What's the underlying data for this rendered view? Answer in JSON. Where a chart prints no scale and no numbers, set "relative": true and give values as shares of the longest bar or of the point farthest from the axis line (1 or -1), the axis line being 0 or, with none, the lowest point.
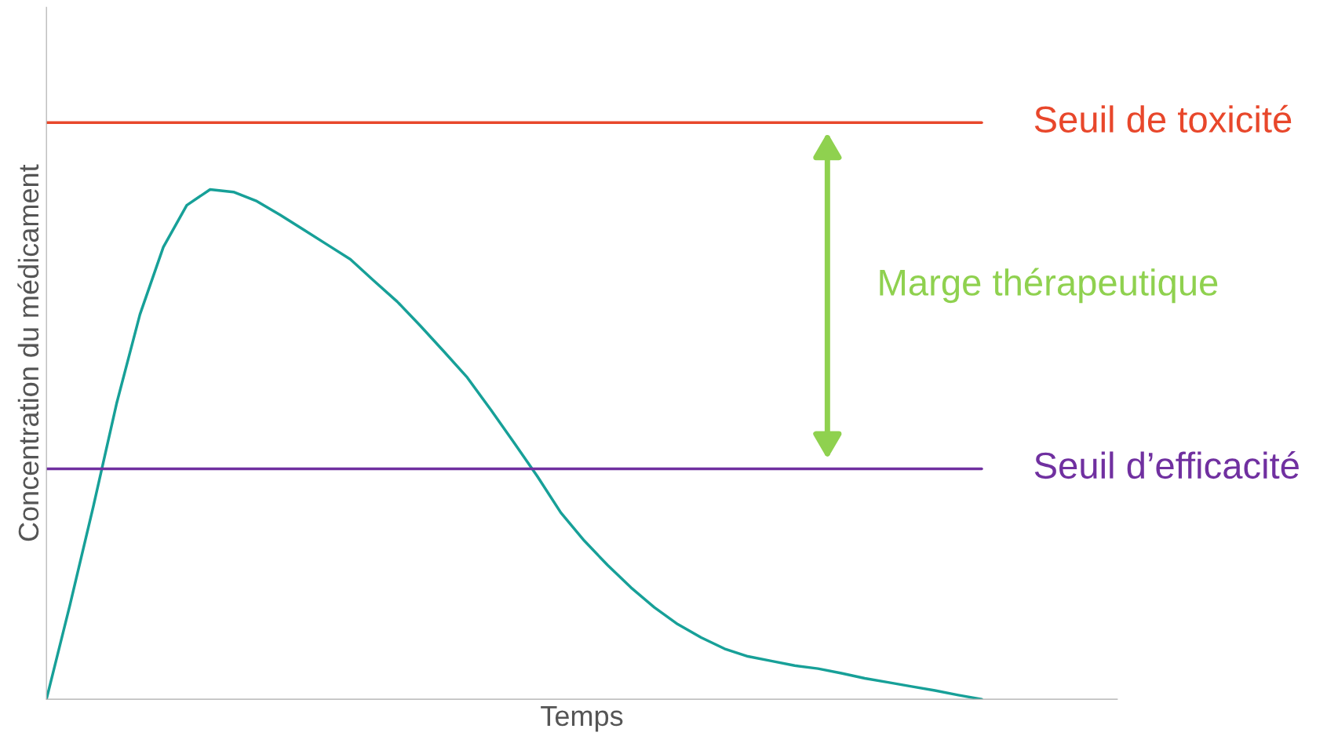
{
  "chart_data": {
    "type": "line",
    "relative": true,
    "xlabel": "Temps",
    "ylabel": "Concentration du médicament",
    "categories": [
      null,
      null,
      null,
      null,
      null,
      null,
      null,
      null,
      null,
      null,
      null,
      null,
      null,
      null,
      null,
      null,
      null,
      null,
      null,
      null,
      null,
      null,
      null,
      null,
      null,
      null,
      null,
      null,
      null,
      null,
      null,
      null,
      null,
      null,
      null,
      null,
      null,
      null,
      null,
      null,
      null
    ],
    "series": [
      {
        "color": "#17a098",
        "values": [
          0,
          0.184,
          0.377,
          0.58,
          0.755,
          0.887,
          0.969,
          1,
          0.995,
          0.977,
          0.95,
          0.921,
          0.892,
          0.863,
          0.821,
          0.78,
          0.732,
          0.682,
          0.631,
          0.568,
          0.503,
          0.437,
          0.366,
          0.311,
          0.263,
          0.219,
          0.18,
          0.147,
          0.121,
          0.099,
          0.084,
          0.075,
          0.066,
          0.06,
          0.051,
          0.041,
          0.033,
          0.025,
          0.017,
          0.008,
          0
        ]
      }
    ],
    "ref_lines": [
      {
        "axis": "y",
        "value": 1.131,
        "label": "Seuil de toxicité",
        "color": "#e8472b"
      },
      {
        "axis": "y",
        "value": 0.452,
        "label": "Seuil d’efficacité",
        "color": "#7030a0"
      }
    ],
    "annotations": [
      "Marge thérapeutique"
    ],
    "grid": false,
    "legend": false,
    "marker": "none",
    "line_style": "solid"
  }
}
